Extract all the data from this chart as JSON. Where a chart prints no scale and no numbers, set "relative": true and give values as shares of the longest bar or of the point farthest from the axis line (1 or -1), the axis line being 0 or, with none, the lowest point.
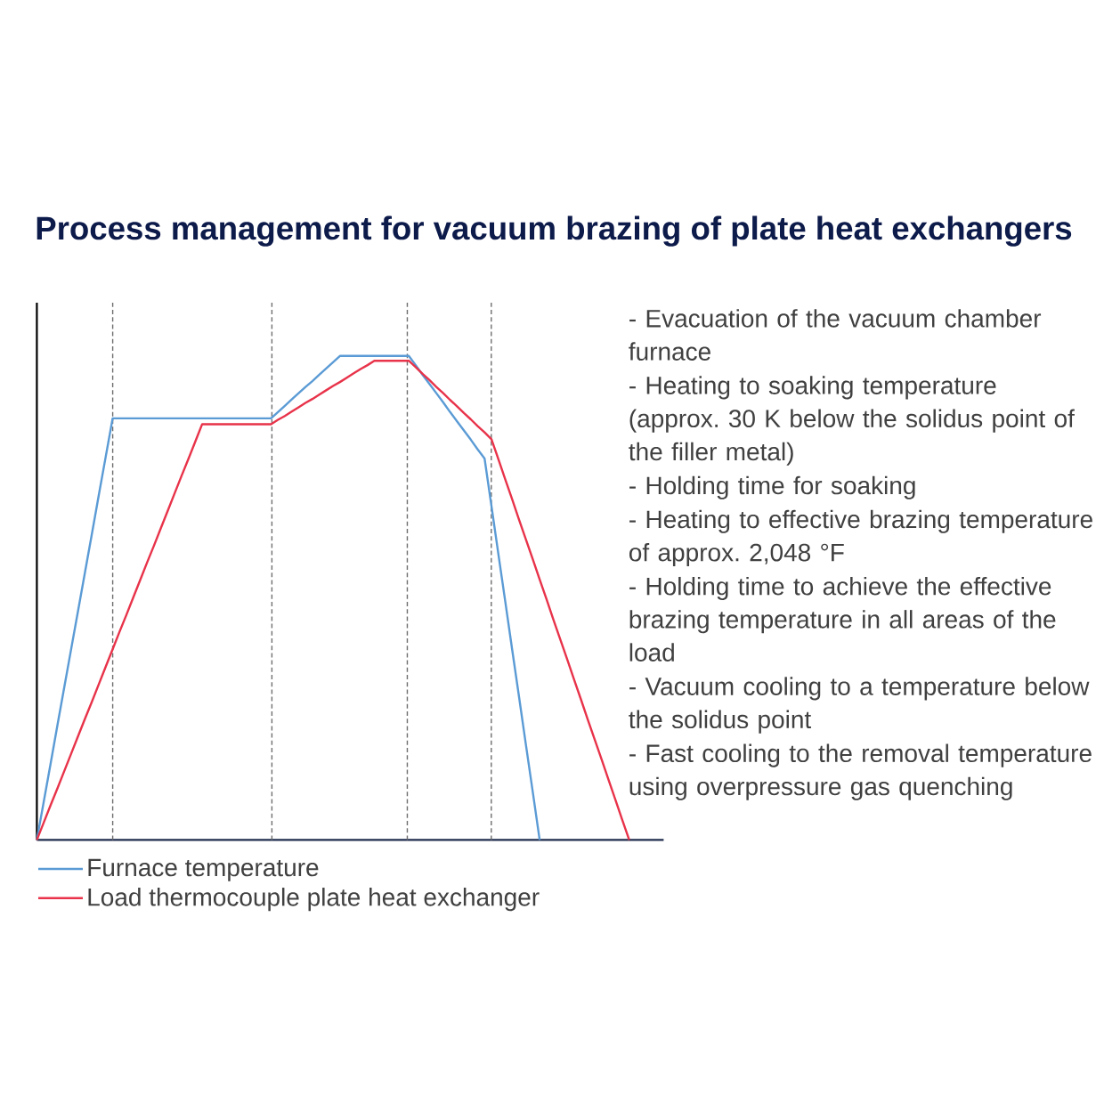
{
  "chart_data": {
    "type": "line",
    "title": "Process management for vacuum brazing of plate heat exchangers",
    "relative": true,
    "categories": [
      null,
      null,
      null,
      null,
      null,
      null,
      null,
      null,
      null,
      null,
      null,
      null,
      null,
      null,
      null,
      null,
      null,
      null,
      null,
      null,
      null,
      null,
      null,
      null,
      null,
      null,
      null,
      null,
      null,
      null,
      null,
      null,
      null,
      null,
      null,
      null,
      null,
      null,
      null,
      null,
      null,
      null,
      null,
      null,
      null,
      null,
      null,
      null,
      null,
      null,
      null,
      null,
      null,
      null,
      null,
      null,
      null,
      null,
      null,
      null,
      null,
      null,
      null,
      null,
      null,
      null,
      null,
      null,
      null,
      null,
      null,
      null,
      null,
      null,
      null,
      null,
      null,
      null,
      null,
      null,
      null,
      null,
      null,
      null,
      null,
      null,
      null,
      null,
      null,
      null,
      null,
      null
    ],
    "series": [
      {
        "name": "Furnace temperature",
        "color": "#5b9bd5",
        "values": [
          0,
          0.079,
          0.158,
          0.238,
          0.317,
          0.396,
          0.475,
          0.554,
          0.633,
          0.713,
          0.792,
          0.871,
          0.871,
          0.871,
          0.871,
          0.871,
          0.871,
          0.871,
          0.871,
          0.871,
          0.871,
          0.871,
          0.871,
          0.871,
          0.871,
          0.871,
          0.871,
          0.871,
          0.871,
          0.871,
          0.871,
          0.871,
          0.871,
          0.871,
          0.871,
          0.884,
          0.897,
          0.91,
          0.923,
          0.936,
          0.948,
          0.961,
          0.974,
          0.987,
          1,
          1,
          1,
          1,
          1,
          1,
          1,
          1,
          1,
          1,
          1,
          0.981,
          0.961,
          0.942,
          0.923,
          0.904,
          0.884,
          0.865,
          0.846,
          0.827,
          0.807,
          0.788,
          0.69,
          0.591,
          0.493,
          0.394,
          0.296,
          0.197,
          0.099,
          0,
          null,
          null,
          null,
          null,
          null,
          null,
          null,
          null,
          null,
          null,
          null,
          null,
          null,
          null,
          null,
          null,
          null,
          null
        ]
      },
      {
        "name": "Load thermocouple plate heat exchanger",
        "color": "#e8334a",
        "values": [
          0,
          0.036,
          0.072,
          0.107,
          0.143,
          0.179,
          0.215,
          0.251,
          0.286,
          0.322,
          0.358,
          0.394,
          0.43,
          0.465,
          0.501,
          0.537,
          0.573,
          0.608,
          0.644,
          0.68,
          0.716,
          0.752,
          0.787,
          0.823,
          0.859,
          0.859,
          0.859,
          0.859,
          0.859,
          0.859,
          0.859,
          0.859,
          0.859,
          0.859,
          0.859,
          0.868,
          0.876,
          0.885,
          0.894,
          0.903,
          0.911,
          0.92,
          0.929,
          0.938,
          0.946,
          0.955,
          0.964,
          0.973,
          0.981,
          0.99,
          0.99,
          0.99,
          0.99,
          0.99,
          0.99,
          0.977,
          0.963,
          0.95,
          0.936,
          0.923,
          0.909,
          0.896,
          0.882,
          0.869,
          0.855,
          0.842,
          0.828,
          0.787,
          0.745,
          0.704,
          0.662,
          0.621,
          0.58,
          0.538,
          0.497,
          0.455,
          0.414,
          0.373,
          0.331,
          0.29,
          0.248,
          0.207,
          0.166,
          0.124,
          0.083,
          0.041,
          0,
          null,
          null,
          null,
          null,
          null
        ]
      }
    ],
    "grid": "x",
    "legend": "bottom left",
    "annotations": [
      "- Evacuation of the vacuum chamber furnace",
      "- Heating to soaking temperature (approx. 30 K below the solidus point of the filler metal)",
      "- Holding time for soaking",
      "- Heating to effective brazing temperature of approx. 2,048 °F",
      "- Holding time to achieve the effective brazing temperature in all areas of the load",
      "- Vacuum cooling to a temperature below the solidus point",
      "- Fast cooling to the removal temperature using overpressure gas quenching"
    ]
  }
}
